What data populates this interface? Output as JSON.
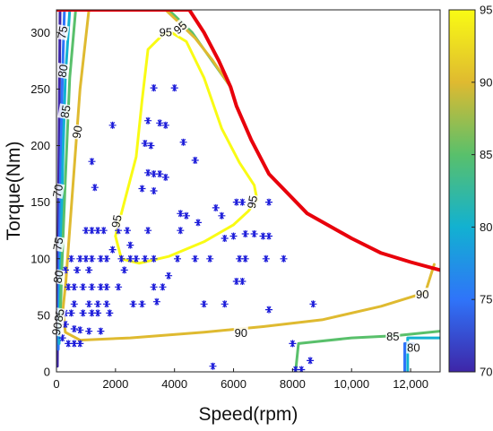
{
  "chart_data": {
    "type": "contour",
    "xlabel": "Speed(rpm)",
    "ylabel": "Torque(Nm)",
    "xlim": [
      0,
      13000
    ],
    "ylim": [
      0,
      320
    ],
    "x_ticks": [
      0,
      2000,
      4000,
      6000,
      8000,
      10000,
      12000
    ],
    "x_tick_labels": [
      "0",
      "2000",
      "4000",
      "6000",
      "8000",
      "10,000",
      "12,000"
    ],
    "y_ticks": [
      0,
      50,
      100,
      150,
      200,
      250,
      300
    ],
    "y_tick_labels": [
      "0",
      "50",
      "100",
      "150",
      "200",
      "250",
      "300"
    ],
    "grid": false,
    "colorbar": {
      "range": [
        70,
        95
      ],
      "ticks": [
        70,
        75,
        80,
        85,
        90,
        95
      ],
      "tick_labels": [
        "70",
        "75",
        "80",
        "85",
        "90",
        "95"
      ],
      "stops": [
        "#3e26a8",
        "#2f74f9",
        "#12b1d1",
        "#59c06b",
        "#dfba30",
        "#f9fb14"
      ]
    },
    "envelope": {
      "color": "#e8000b",
      "points": [
        [
          0,
          320
        ],
        [
          4500,
          320
        ],
        [
          5000,
          300
        ],
        [
          5500,
          275
        ],
        [
          5900,
          252
        ],
        [
          6100,
          235
        ],
        [
          6600,
          205
        ],
        [
          7200,
          175
        ],
        [
          8500,
          140
        ],
        [
          10000,
          118
        ],
        [
          11000,
          105
        ],
        [
          12000,
          97
        ],
        [
          13000,
          90
        ]
      ]
    },
    "contours": [
      {
        "level": 70,
        "color": "#3e26a8",
        "points": [
          [
            120,
            320
          ],
          [
            100,
            250
          ],
          [
            80,
            180
          ],
          [
            60,
            120
          ],
          [
            40,
            40
          ],
          [
            30,
            5
          ]
        ]
      },
      {
        "level": 75,
        "color": "#2f74f9",
        "points": [
          [
            270,
            320
          ],
          [
            200,
            260
          ],
          [
            140,
            180
          ],
          [
            100,
            110
          ],
          [
            80,
            60
          ],
          [
            60,
            20
          ]
        ]
      },
      {
        "level": 75,
        "color": "#2f74f9",
        "points": [
          [
            11800,
            0
          ],
          [
            11800,
            25
          ],
          [
            12100,
            25
          ]
        ]
      },
      {
        "level": 80,
        "color": "#12b1d1",
        "points": [
          [
            450,
            320
          ],
          [
            300,
            260
          ],
          [
            220,
            190
          ],
          [
            160,
            120
          ],
          [
            110,
            60
          ],
          [
            90,
            25
          ]
        ]
      },
      {
        "level": 80,
        "color": "#12b1d1",
        "points": [
          [
            11900,
            0
          ],
          [
            11900,
            30
          ],
          [
            13000,
            30
          ]
        ]
      },
      {
        "level": 85,
        "color": "#59c06b",
        "points": [
          [
            650,
            320
          ],
          [
            450,
            260
          ],
          [
            300,
            170
          ],
          [
            180,
            90
          ],
          [
            120,
            40
          ]
        ]
      },
      {
        "level": 85,
        "color": "#59c06b",
        "points": [
          [
            8100,
            0
          ],
          [
            8200,
            25
          ],
          [
            10000,
            30
          ],
          [
            11500,
            32
          ],
          [
            13000,
            36
          ]
        ]
      },
      {
        "level": 85,
        "color": "#59c06b",
        "points": [
          [
            3800,
            320
          ],
          [
            4200,
            310
          ],
          [
            4600,
            300
          ],
          [
            5000,
            285
          ],
          [
            5900,
            252
          ]
        ]
      },
      {
        "level": 90,
        "color": "#dfba30",
        "points": [
          [
            1100,
            320
          ],
          [
            800,
            250
          ],
          [
            600,
            180
          ],
          [
            430,
            120
          ],
          [
            320,
            80
          ],
          [
            220,
            55
          ],
          [
            300,
            35
          ],
          [
            800,
            28
          ],
          [
            2500,
            30
          ],
          [
            5000,
            35
          ],
          [
            7000,
            40
          ],
          [
            9000,
            46
          ],
          [
            11000,
            58
          ],
          [
            12500,
            70
          ],
          [
            12800,
            95
          ]
        ]
      },
      {
        "level": 90,
        "color": "#dfba30",
        "points": [
          [
            3700,
            320
          ],
          [
            4100,
            310
          ],
          [
            4700,
            295
          ],
          [
            5300,
            275
          ],
          [
            5900,
            252
          ]
        ]
      },
      {
        "level": 95,
        "color": "#f9fb14",
        "points": [
          [
            3900,
            300
          ],
          [
            3600,
            298
          ],
          [
            3100,
            285
          ],
          [
            2900,
            240
          ],
          [
            2700,
            190
          ],
          [
            2300,
            150
          ],
          [
            2000,
            120
          ],
          [
            2200,
            100
          ],
          [
            2800,
            96
          ],
          [
            3800,
            102
          ],
          [
            5000,
            115
          ],
          [
            6000,
            130
          ],
          [
            6500,
            142
          ],
          [
            6800,
            152
          ],
          [
            6700,
            165
          ],
          [
            6200,
            185
          ],
          [
            5600,
            215
          ],
          [
            5000,
            260
          ],
          [
            4400,
            292
          ],
          [
            3900,
            300
          ]
        ]
      }
    ],
    "contour_labels": [
      {
        "text": "75",
        "x": 220,
        "y": 300,
        "angle": -80
      },
      {
        "text": "80",
        "x": 230,
        "y": 266,
        "angle": -80
      },
      {
        "text": "85",
        "x": 320,
        "y": 230,
        "angle": -80
      },
      {
        "text": "90",
        "x": 720,
        "y": 212,
        "angle": -80
      },
      {
        "text": "70",
        "x": 60,
        "y": 160,
        "angle": -80
      },
      {
        "text": "75",
        "x": 70,
        "y": 113,
        "angle": -80
      },
      {
        "text": "80",
        "x": 80,
        "y": 84,
        "angle": -80
      },
      {
        "text": "85",
        "x": 110,
        "y": 50,
        "angle": -80
      },
      {
        "text": "90",
        "x": 30,
        "y": 38,
        "angle": -80
      },
      {
        "text": "95",
        "x": 3700,
        "y": 300,
        "angle": 0
      },
      {
        "text": "95",
        "x": 4200,
        "y": 304,
        "angle": -40
      },
      {
        "text": "95",
        "x": 2050,
        "y": 133,
        "angle": -80
      },
      {
        "text": "95",
        "x": 6650,
        "y": 150,
        "angle": -80
      },
      {
        "text": "90",
        "x": 6250,
        "y": 34,
        "angle": 0
      },
      {
        "text": "90",
        "x": 12400,
        "y": 68,
        "angle": 0
      },
      {
        "text": "85",
        "x": 11400,
        "y": 31,
        "angle": 0
      },
      {
        "text": "80",
        "x": 12100,
        "y": 21,
        "angle": 0
      }
    ],
    "scatter": {
      "color": "#1a1ad9",
      "marker": "*",
      "points": [
        [
          1900,
          218
        ],
        [
          3300,
          251
        ],
        [
          4000,
          251
        ],
        [
          3100,
          222
        ],
        [
          3500,
          220
        ],
        [
          3700,
          218
        ],
        [
          4300,
          203
        ],
        [
          3000,
          202
        ],
        [
          3200,
          200
        ],
        [
          1200,
          186
        ],
        [
          4700,
          187
        ],
        [
          3100,
          176
        ],
        [
          3300,
          175
        ],
        [
          3500,
          175
        ],
        [
          3700,
          172
        ],
        [
          2900,
          162
        ],
        [
          3300,
          160
        ],
        [
          1300,
          163
        ],
        [
          4200,
          140
        ],
        [
          4400,
          138
        ],
        [
          4800,
          132
        ],
        [
          4200,
          125
        ],
        [
          5400,
          145
        ],
        [
          5600,
          138
        ],
        [
          6100,
          150
        ],
        [
          6300,
          150
        ],
        [
          6600,
          150
        ],
        [
          7200,
          150
        ],
        [
          1000,
          125
        ],
        [
          1200,
          125
        ],
        [
          1400,
          125
        ],
        [
          1600,
          125
        ],
        [
          2100,
          125
        ],
        [
          2400,
          125
        ],
        [
          3100,
          125
        ],
        [
          6000,
          120
        ],
        [
          6400,
          122
        ],
        [
          6700,
          122
        ],
        [
          7000,
          120
        ],
        [
          7200,
          120
        ],
        [
          5700,
          118
        ],
        [
          2500,
          112
        ],
        [
          1900,
          108
        ],
        [
          500,
          100
        ],
        [
          800,
          100
        ],
        [
          1000,
          100
        ],
        [
          1200,
          100
        ],
        [
          1500,
          100
        ],
        [
          1700,
          100
        ],
        [
          2200,
          100
        ],
        [
          2500,
          100
        ],
        [
          2700,
          100
        ],
        [
          3000,
          100
        ],
        [
          3300,
          100
        ],
        [
          4100,
          100
        ],
        [
          4700,
          100
        ],
        [
          5200,
          100
        ],
        [
          6200,
          100
        ],
        [
          6400,
          100
        ],
        [
          7100,
          100
        ],
        [
          7700,
          100
        ],
        [
          300,
          90
        ],
        [
          700,
          90
        ],
        [
          1100,
          90
        ],
        [
          2300,
          90
        ],
        [
          3800,
          85
        ],
        [
          400,
          75
        ],
        [
          600,
          75
        ],
        [
          900,
          75
        ],
        [
          1200,
          75
        ],
        [
          1500,
          75
        ],
        [
          1700,
          75
        ],
        [
          2100,
          75
        ],
        [
          3300,
          75
        ],
        [
          3600,
          75
        ],
        [
          6100,
          80
        ],
        [
          6300,
          80
        ],
        [
          600,
          60
        ],
        [
          1100,
          60
        ],
        [
          1400,
          60
        ],
        [
          1700,
          60
        ],
        [
          2600,
          60
        ],
        [
          2900,
          60
        ],
        [
          5000,
          60
        ],
        [
          5700,
          60
        ],
        [
          3400,
          62
        ],
        [
          7200,
          55
        ],
        [
          300,
          52
        ],
        [
          500,
          52
        ],
        [
          900,
          52
        ],
        [
          1200,
          52
        ],
        [
          1400,
          52
        ],
        [
          1800,
          52
        ],
        [
          300,
          42
        ],
        [
          600,
          38
        ],
        [
          800,
          37
        ],
        [
          1100,
          36
        ],
        [
          1500,
          36
        ],
        [
          200,
          30
        ],
        [
          400,
          25
        ],
        [
          600,
          25
        ],
        [
          800,
          25
        ],
        [
          8000,
          25
        ],
        [
          8600,
          10
        ],
        [
          8100,
          2
        ],
        [
          8300,
          2
        ],
        [
          5300,
          5
        ],
        [
          8700,
          60
        ]
      ]
    }
  }
}
